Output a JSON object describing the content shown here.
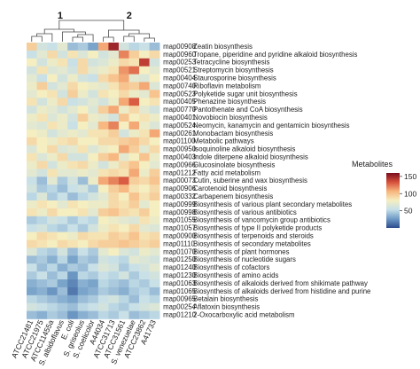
{
  "chart_data": {
    "type": "heatmap",
    "title": "",
    "xlabel": "",
    "ylabel": "",
    "cluster_labels": [
      "1",
      "2"
    ],
    "columns": [
      "ATCC21481",
      "ATCC21975",
      "ATCC11455a",
      "S. albidoflavus",
      "E. coli",
      "S. griseolus",
      "S. coelicolor",
      "A44034",
      "ATCC31713",
      "ATCC31561",
      "S. venezuelae",
      "ATCC23862",
      "A41733"
    ],
    "rows": [
      {
        "id": "map00908",
        "name": "Zeatin biosynthesis"
      },
      {
        "id": "map00960",
        "name": "Tropane, piperidine and pyridine alkaloid biosynthesis"
      },
      {
        "id": "map00253",
        "name": "Tetracycline biosynthesis"
      },
      {
        "id": "map00521",
        "name": "Streptomycin biosynthesis"
      },
      {
        "id": "map00404",
        "name": "Staurosporine biosynthesis"
      },
      {
        "id": "map00740",
        "name": "Riboflavin metabolism"
      },
      {
        "id": "map00523",
        "name": "Polyketide sugar unit biosynthesis"
      },
      {
        "id": "map00405",
        "name": "Phenazine biosynthesis"
      },
      {
        "id": "map00770",
        "name": "Pantothenate and CoA biosynthesis"
      },
      {
        "id": "map00401",
        "name": "Novobiocin biosynthesis"
      },
      {
        "id": "map00524",
        "name": "Neomycin, kanamycin and gentamicin biosynthesis"
      },
      {
        "id": "map00261",
        "name": "Monobactam biosynthesis"
      },
      {
        "id": "map01100",
        "name": "Metabolic pathways"
      },
      {
        "id": "map00950",
        "name": "Isoquinoline alkaloid biosynthesis"
      },
      {
        "id": "map00403",
        "name": "Indole diterpene alkaloid biosynthesis"
      },
      {
        "id": "map00966",
        "name": "Glucosinolate biosynthesis"
      },
      {
        "id": "map01212",
        "name": "Fatty acid metabolism"
      },
      {
        "id": "map00073",
        "name": "Cutin, suberine and wax biosynthesis"
      },
      {
        "id": "map00906",
        "name": "Carotenoid biosynthesis"
      },
      {
        "id": "map00332",
        "name": "Carbapenem biosynthesis"
      },
      {
        "id": "map00999",
        "name": "Biosynthesis of various plant secondary metabolites"
      },
      {
        "id": "map00998",
        "name": "Biosynthesis of various antibiotics"
      },
      {
        "id": "map01055",
        "name": "Biosynthesis of vancomycin group antibiotics"
      },
      {
        "id": "map01057",
        "name": "Biosynthesis of type II polyketide products"
      },
      {
        "id": "map00900",
        "name": "Biosynthesis of terpenoids and steroids"
      },
      {
        "id": "map01110",
        "name": "Biosynthesis of secondary metabolites"
      },
      {
        "id": "map01070",
        "name": "Biosynthesis of plant hormones"
      },
      {
        "id": "map01250",
        "name": "Biosynthesis of nucleotide sugars"
      },
      {
        "id": "map01240",
        "name": "Biosynthesis of cofactors"
      },
      {
        "id": "map01230",
        "name": "Biosynthesis of amino acids"
      },
      {
        "id": "map01063",
        "name": "Biosynthesis of alkaloids derived from shikimate pathway"
      },
      {
        "id": "map01065",
        "name": "Biosynthesis of alkaloids derived from histidine and purine"
      },
      {
        "id": "map00965",
        "name": "Betalain biosynthesis"
      },
      {
        "id": "map00254",
        "name": "Aflatoxin biosynthesis"
      },
      {
        "id": "map01210",
        "name": "2-Oxocarboxylic acid metabolism"
      }
    ],
    "values": [
      [
        95,
        60,
        55,
        70,
        40,
        45,
        30,
        110,
        150,
        60,
        50,
        55,
        40
      ],
      [
        55,
        70,
        90,
        60,
        85,
        65,
        80,
        60,
        70,
        120,
        95,
        80,
        90
      ],
      [
        80,
        60,
        75,
        85,
        55,
        90,
        60,
        65,
        75,
        90,
        85,
        140,
        60
      ],
      [
        60,
        85,
        65,
        70,
        60,
        90,
        70,
        75,
        85,
        115,
        125,
        80,
        70
      ],
      [
        70,
        55,
        80,
        60,
        75,
        60,
        55,
        90,
        100,
        110,
        70,
        65,
        80
      ],
      [
        75,
        95,
        60,
        70,
        90,
        80,
        75,
        70,
        85,
        100,
        95,
        110,
        65
      ],
      [
        70,
        80,
        85,
        60,
        95,
        75,
        60,
        85,
        80,
        90,
        75,
        70,
        100
      ],
      [
        85,
        60,
        75,
        90,
        55,
        60,
        70,
        60,
        75,
        110,
        130,
        80,
        85
      ],
      [
        60,
        75,
        70,
        60,
        70,
        80,
        65,
        95,
        110,
        75,
        90,
        70,
        60
      ],
      [
        75,
        85,
        65,
        75,
        60,
        95,
        75,
        70,
        60,
        100,
        80,
        85,
        75
      ],
      [
        70,
        65,
        85,
        75,
        55,
        80,
        70,
        105,
        120,
        80,
        110,
        75,
        65
      ],
      [
        80,
        75,
        60,
        70,
        75,
        70,
        85,
        85,
        95,
        60,
        75,
        85,
        110
      ],
      [
        90,
        80,
        75,
        85,
        90,
        80,
        80,
        90,
        90,
        95,
        100,
        90,
        80
      ],
      [
        65,
        80,
        90,
        65,
        70,
        85,
        65,
        75,
        80,
        110,
        95,
        70,
        90
      ],
      [
        85,
        65,
        75,
        90,
        60,
        60,
        80,
        95,
        105,
        70,
        80,
        100,
        75
      ],
      [
        75,
        90,
        60,
        75,
        85,
        90,
        75,
        60,
        75,
        90,
        100,
        80,
        70
      ],
      [
        70,
        60,
        85,
        70,
        70,
        75,
        70,
        85,
        90,
        85,
        110,
        75,
        95
      ],
      [
        55,
        40,
        70,
        45,
        60,
        40,
        75,
        110,
        120,
        130,
        95,
        90,
        100
      ],
      [
        60,
        45,
        50,
        40,
        55,
        60,
        45,
        80,
        95,
        105,
        85,
        80,
        90
      ],
      [
        50,
        65,
        45,
        55,
        40,
        50,
        60,
        70,
        90,
        80,
        100,
        85,
        95
      ],
      [
        75,
        85,
        80,
        70,
        85,
        80,
        75,
        75,
        90,
        85,
        95,
        70,
        80
      ],
      [
        85,
        75,
        90,
        80,
        80,
        85,
        70,
        95,
        100,
        90,
        85,
        95,
        80
      ],
      [
        45,
        50,
        60,
        55,
        45,
        55,
        50,
        80,
        75,
        70,
        65,
        85,
        75
      ],
      [
        55,
        60,
        50,
        45,
        55,
        45,
        60,
        75,
        85,
        80,
        90,
        70,
        65
      ],
      [
        80,
        90,
        85,
        80,
        75,
        90,
        85,
        85,
        95,
        90,
        100,
        85,
        90
      ],
      [
        90,
        85,
        80,
        90,
        85,
        80,
        90,
        95,
        95,
        100,
        95,
        90,
        95
      ],
      [
        65,
        50,
        45,
        60,
        40,
        55,
        45,
        70,
        80,
        65,
        60,
        75,
        70
      ],
      [
        40,
        45,
        35,
        50,
        30,
        45,
        40,
        60,
        55,
        50,
        70,
        65,
        60
      ],
      [
        55,
        40,
        50,
        35,
        45,
        40,
        55,
        65,
        60,
        45,
        55,
        60,
        70
      ],
      [
        45,
        55,
        40,
        50,
        25,
        50,
        45,
        55,
        50,
        60,
        45,
        55,
        60
      ],
      [
        35,
        40,
        45,
        30,
        20,
        35,
        30,
        50,
        45,
        40,
        50,
        45,
        55
      ],
      [
        30,
        35,
        25,
        40,
        15,
        30,
        35,
        45,
        40,
        35,
        45,
        50,
        40
      ],
      [
        50,
        45,
        40,
        35,
        30,
        40,
        45,
        55,
        60,
        50,
        40,
        55,
        50
      ],
      [
        60,
        55,
        50,
        45,
        40,
        50,
        55,
        60,
        50,
        45,
        55,
        60,
        65
      ],
      [
        40,
        35,
        45,
        40,
        25,
        35,
        40,
        50,
        45,
        55,
        40,
        45,
        50
      ]
    ],
    "colorbar": {
      "title": "Metabolites",
      "ticks": [
        50,
        100,
        150
      ],
      "range": [
        0,
        160
      ],
      "colors": [
        "#2c4b8c",
        "#6f9bc6",
        "#c6dfe8",
        "#f5eec1",
        "#f7b57d",
        "#d6503b",
        "#7a0d1f"
      ]
    }
  }
}
